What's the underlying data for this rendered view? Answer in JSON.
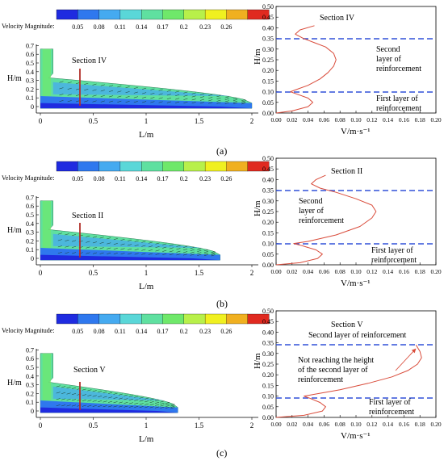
{
  "colorbar": {
    "label": "Velocity Magnitude:",
    "ticks": [
      "0.05",
      "0.08",
      "0.11",
      "0.14",
      "0.17",
      "0.2",
      "0.23",
      "0.26"
    ],
    "colors": [
      "#1f2be0",
      "#2f78ee",
      "#45aaf0",
      "#5ad7d8",
      "#5fe0a0",
      "#6fe86a",
      "#b8f04a",
      "#f0f020",
      "#f0b020",
      "#e02a20"
    ]
  },
  "panels": [
    {
      "tag": "(a)",
      "section_label": "Section IV",
      "contour": {
        "xlabel": "L/m",
        "ylabel": "H/m",
        "xticks": [
          "0",
          "0.5",
          "1",
          "1.5",
          "2"
        ],
        "yticks": [
          "0",
          "0.1",
          "0.2",
          "0.3",
          "0.4",
          "0.5",
          "0.6",
          "0.7"
        ],
        "front_l": 2.0
      },
      "profile": {
        "section_label": "Section IV",
        "annotations": [
          [
            "Second",
            "layer of",
            "reinforcement"
          ],
          [
            "First layer of",
            "reinforcement"
          ]
        ]
      }
    },
    {
      "tag": "(b)",
      "section_label": "Section II",
      "contour": {
        "xlabel": "L/m",
        "ylabel": "H/m",
        "xticks": [
          "0",
          "0.5",
          "1",
          "1.5",
          "2"
        ],
        "yticks": [
          "0",
          "0.1",
          "0.2",
          "0.3",
          "0.4",
          "0.5",
          "0.6",
          "0.7"
        ],
        "front_l": 1.7
      },
      "profile": {
        "section_label": "Section II",
        "annotations": [
          [
            "Second",
            "layer of",
            "reinforcement"
          ],
          [
            "First layer of",
            "reinforcement"
          ]
        ]
      }
    },
    {
      "tag": "(c)",
      "section_label": "Section V",
      "contour": {
        "xlabel": "L/m",
        "ylabel": "H/m",
        "xticks": [
          "0",
          "0.5",
          "1",
          "1.5",
          "2"
        ],
        "yticks": [
          "0",
          "0.1",
          "0.2",
          "0.3",
          "0.4",
          "0.5",
          "0.6",
          "0.7"
        ],
        "front_l": 1.3
      },
      "profile": {
        "section_label": "Section V",
        "annotations": [
          [
            "Second layer of reinforcement"
          ],
          [
            "Not reaching the height",
            "of the second layer of",
            "reinforcement"
          ],
          [
            "First layer of",
            "reinforcement"
          ]
        ]
      }
    }
  ],
  "chart_data": [
    {
      "type": "line",
      "title": "Section IV",
      "xlabel": "V/m·s⁻¹",
      "ylabel": "H/m",
      "xlim": [
        0.0,
        0.2
      ],
      "ylim": [
        0.0,
        0.5
      ],
      "xticks": [
        "0.00",
        "0.02",
        "0.04",
        "0.06",
        "0.08",
        "0.10",
        "0.12",
        "0.14",
        "0.16",
        "0.18",
        "0.20"
      ],
      "yticks": [
        "0.00",
        "0.05",
        "0.10",
        "0.15",
        "0.20",
        "0.25",
        "0.30",
        "0.35",
        "0.40",
        "0.45",
        "0.50"
      ],
      "reference_lines": [
        0.35,
        0.1
      ],
      "x": [
        0.0,
        0.02,
        0.04,
        0.046,
        0.04,
        0.025,
        0.018,
        0.025,
        0.04,
        0.055,
        0.065,
        0.072,
        0.075,
        0.072,
        0.062,
        0.048,
        0.034,
        0.024,
        0.03,
        0.048
      ],
      "y": [
        0.0,
        0.01,
        0.03,
        0.05,
        0.07,
        0.09,
        0.1,
        0.11,
        0.13,
        0.16,
        0.19,
        0.22,
        0.25,
        0.28,
        0.31,
        0.33,
        0.35,
        0.37,
        0.39,
        0.41
      ]
    },
    {
      "type": "line",
      "title": "Section II",
      "xlabel": "V/m·s⁻¹",
      "ylabel": "H/m",
      "xlim": [
        0.0,
        0.2
      ],
      "ylim": [
        0.0,
        0.5
      ],
      "xticks": [
        "0.00",
        "0.02",
        "0.04",
        "0.06",
        "0.08",
        "0.10",
        "0.12",
        "0.14",
        "0.16",
        "0.18",
        "0.20"
      ],
      "yticks": [
        "0.00",
        "0.05",
        "0.10",
        "0.15",
        "0.20",
        "0.25",
        "0.30",
        "0.35",
        "0.40",
        "0.45",
        "0.50"
      ],
      "reference_lines": [
        0.35,
        0.1
      ],
      "x": [
        0.0,
        0.03,
        0.052,
        0.058,
        0.05,
        0.032,
        0.022,
        0.04,
        0.075,
        0.105,
        0.12,
        0.125,
        0.12,
        0.1,
        0.075,
        0.055,
        0.044,
        0.05,
        0.062
      ],
      "y": [
        0.0,
        0.01,
        0.03,
        0.05,
        0.07,
        0.09,
        0.1,
        0.11,
        0.14,
        0.18,
        0.22,
        0.25,
        0.28,
        0.31,
        0.34,
        0.36,
        0.38,
        0.4,
        0.42
      ]
    },
    {
      "type": "line",
      "title": "Section V",
      "xlabel": "V/m·s⁻¹",
      "ylabel": "H/m",
      "xlim": [
        0.0,
        0.2
      ],
      "ylim": [
        0.0,
        0.5
      ],
      "xticks": [
        "0.00",
        "0.02",
        "0.04",
        "0.06",
        "0.08",
        "0.10",
        "0.12",
        "0.14",
        "0.16",
        "0.18",
        "0.20"
      ],
      "yticks": [
        "0.00",
        "0.05",
        "0.10",
        "0.15",
        "0.20",
        "0.25",
        "0.30",
        "0.35",
        "0.40",
        "0.45",
        "0.50"
      ],
      "reference_lines": [
        0.35,
        0.1
      ],
      "x": [
        0.0,
        0.035,
        0.058,
        0.062,
        0.055,
        0.042,
        0.035,
        0.05,
        0.08,
        0.115,
        0.145,
        0.165,
        0.177,
        0.182,
        0.18,
        0.175
      ],
      "y": [
        0.0,
        0.01,
        0.03,
        0.05,
        0.07,
        0.09,
        0.1,
        0.11,
        0.13,
        0.16,
        0.19,
        0.22,
        0.25,
        0.28,
        0.31,
        0.34
      ]
    }
  ]
}
